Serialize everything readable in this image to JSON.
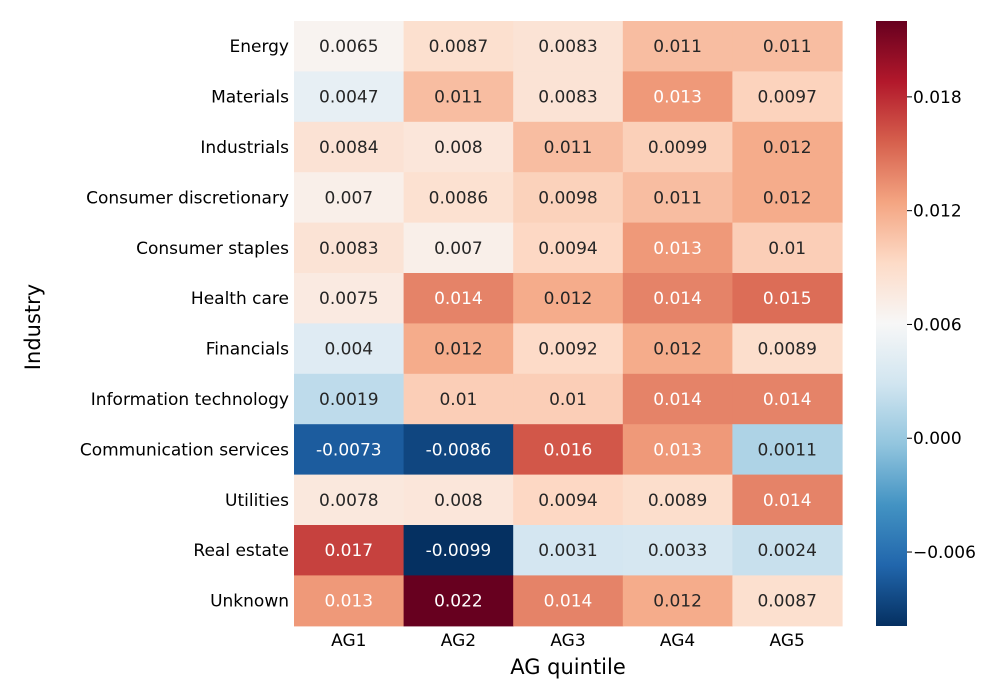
{
  "chart_data": {
    "type": "heatmap",
    "title": "",
    "xlabel": "AG quintile",
    "ylabel": "Industry",
    "x_categories": [
      "AG1",
      "AG2",
      "AG3",
      "AG4",
      "AG5"
    ],
    "y_categories": [
      "Energy",
      "Materials",
      "Industrials",
      "Consumer discretionary",
      "Consumer staples",
      "Health care",
      "Financials",
      "Information technology",
      "Communication services",
      "Utilities",
      "Real estate",
      "Unknown"
    ],
    "values": [
      [
        0.0065,
        0.0087,
        0.0083,
        0.011,
        0.011
      ],
      [
        0.0047,
        0.011,
        0.0083,
        0.013,
        0.0097
      ],
      [
        0.0084,
        0.008,
        0.011,
        0.0099,
        0.012
      ],
      [
        0.007,
        0.0086,
        0.0098,
        0.011,
        0.012
      ],
      [
        0.0083,
        0.007,
        0.0094,
        0.013,
        0.01
      ],
      [
        0.0075,
        0.014,
        0.012,
        0.014,
        0.015
      ],
      [
        0.004,
        0.012,
        0.0092,
        0.012,
        0.0089
      ],
      [
        0.0019,
        0.01,
        0.01,
        0.014,
        0.014
      ],
      [
        -0.0073,
        -0.0086,
        0.016,
        0.013,
        0.0011
      ],
      [
        0.0078,
        0.008,
        0.0094,
        0.0089,
        0.014
      ],
      [
        0.017,
        -0.0099,
        0.0031,
        0.0033,
        0.0024
      ],
      [
        0.013,
        0.022,
        0.014,
        0.012,
        0.0087
      ]
    ],
    "cell_labels": [
      [
        "0.0065",
        "0.0087",
        "0.0083",
        "0.011",
        "0.011"
      ],
      [
        "0.0047",
        "0.011",
        "0.0083",
        "0.013",
        "0.0097"
      ],
      [
        "0.0084",
        "0.008",
        "0.011",
        "0.0099",
        "0.012"
      ],
      [
        "0.007",
        "0.0086",
        "0.0098",
        "0.011",
        "0.012"
      ],
      [
        "0.0083",
        "0.007",
        "0.0094",
        "0.013",
        "0.01"
      ],
      [
        "0.0075",
        "0.014",
        "0.012",
        "0.014",
        "0.015"
      ],
      [
        "0.004",
        "0.012",
        "0.0092",
        "0.012",
        "0.0089"
      ],
      [
        "0.0019",
        "0.01",
        "0.01",
        "0.014",
        "0.014"
      ],
      [
        "-0.0073",
        "-0.0086",
        "0.016",
        "0.013",
        "0.0011"
      ],
      [
        "0.0078",
        "0.008",
        "0.0094",
        "0.0089",
        "0.014"
      ],
      [
        "0.017",
        "-0.0099",
        "0.0031",
        "0.0033",
        "0.0024"
      ],
      [
        "0.013",
        "0.022",
        "0.014",
        "0.012",
        "0.0087"
      ]
    ],
    "colormap": "RdBu_r",
    "color_range": [
      -0.0099,
      0.022
    ],
    "colorbar_ticks": [
      {
        "value": -0.006,
        "label": "−0.006"
      },
      {
        "value": 0.0,
        "label": "0.000"
      },
      {
        "value": 0.006,
        "label": "0.006"
      },
      {
        "value": 0.012,
        "label": "0.012"
      },
      {
        "value": 0.018,
        "label": "0.018"
      }
    ],
    "colorbar_position": "right",
    "grid": false,
    "legend": "none"
  }
}
